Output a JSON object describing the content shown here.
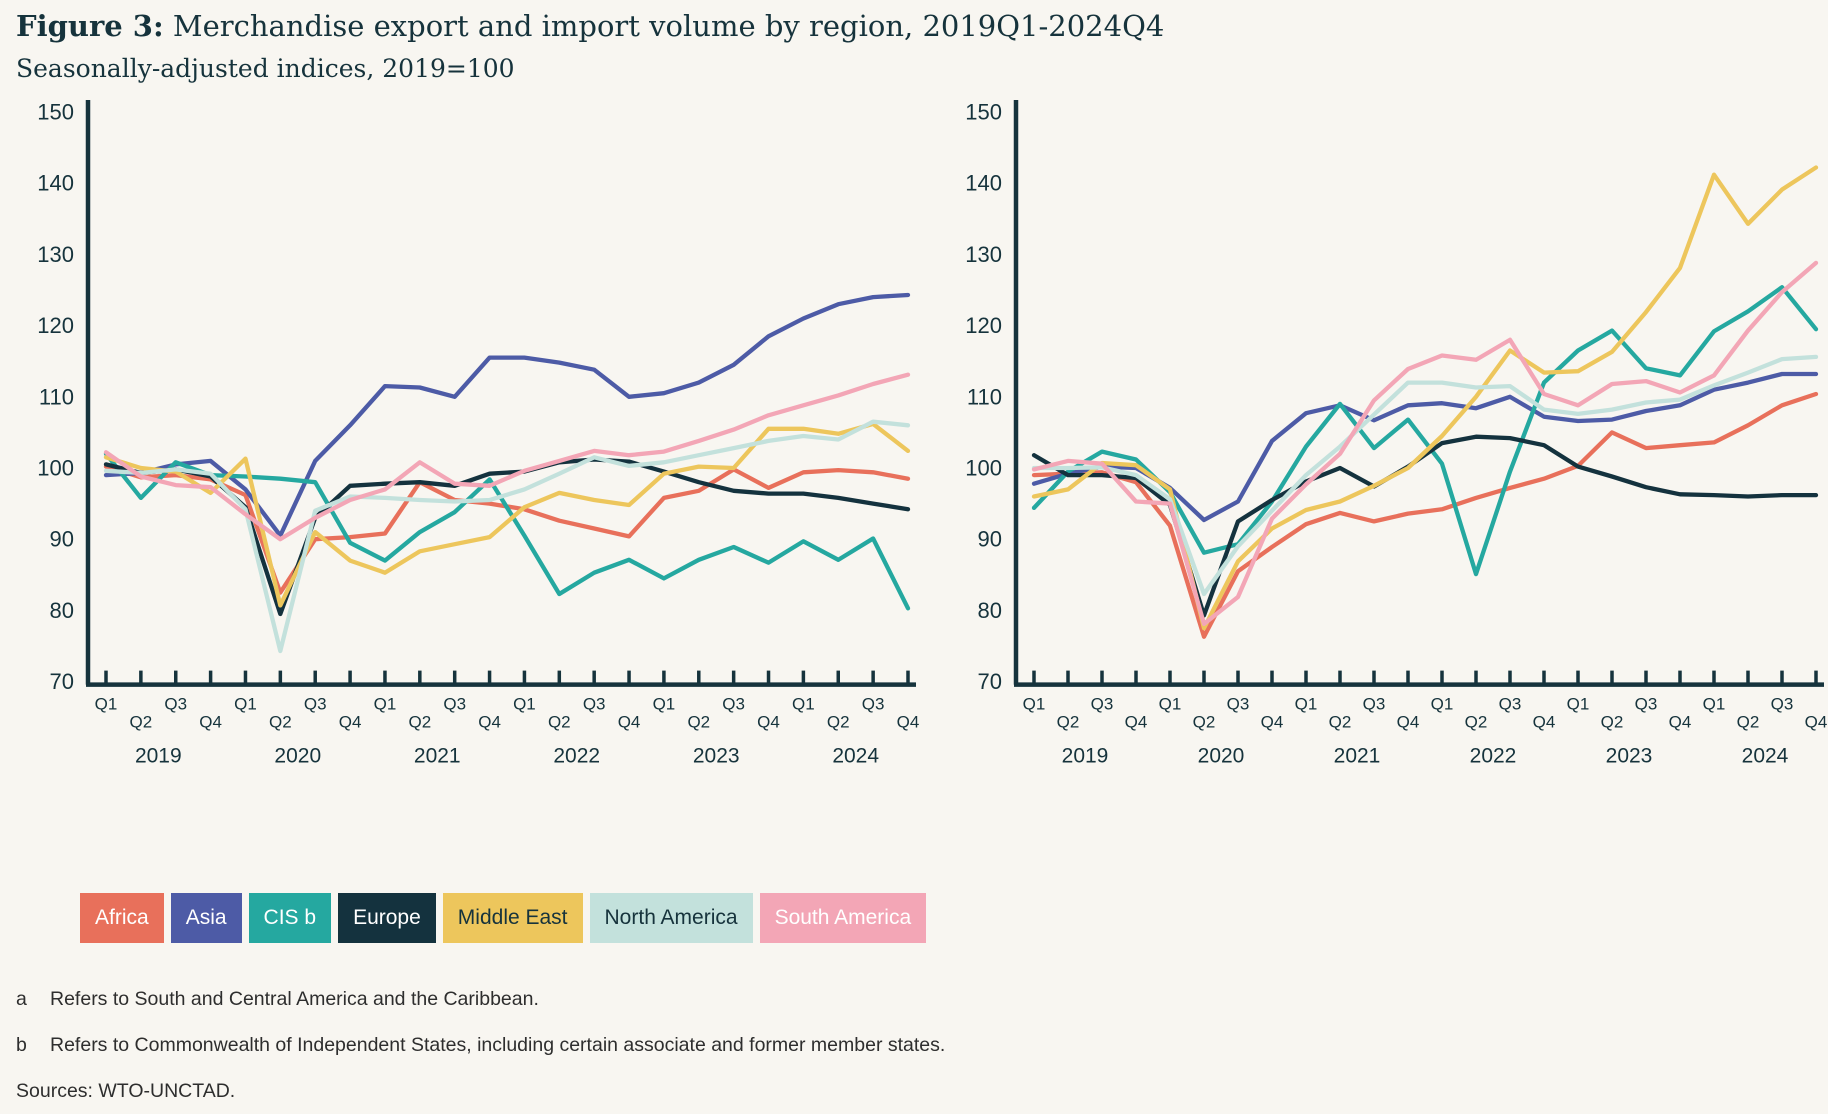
{
  "header": {
    "figure_label": "Figure 3:",
    "title_rest": " Merchandise export and import volume by region, 2019Q1-2024Q4",
    "subtitle": "Seasonally-adjusted indices, 2019=100"
  },
  "colors": {
    "background": "#f8f6f1",
    "axis": "#16333c",
    "footnote_text": "#2e2e2e"
  },
  "legend": [
    {
      "label": "Africa",
      "color": "#e8705b",
      "text_color": "#ffffff"
    },
    {
      "label": "Asia",
      "color": "#4d5ba6",
      "text_color": "#ffffff"
    },
    {
      "label": "CIS b",
      "color": "#25a8a0",
      "text_color": "#ffffff"
    },
    {
      "label": "Europe",
      "color": "#14323e",
      "text_color": "#ffffff"
    },
    {
      "label": "Middle East",
      "color": "#edc65c",
      "text_color": "#16333c"
    },
    {
      "label": "North America",
      "color": "#c3e1dc",
      "text_color": "#16333c"
    },
    {
      "label": "South America",
      "color": "#f3a6b6",
      "text_color": "#ffffff"
    }
  ],
  "footnotes": [
    {
      "marker": "a",
      "text": "Refers to South and Central America and the Caribbean."
    },
    {
      "marker": "b",
      "text": "Refers to Commonwealth of Independent States, including certain associate and former member states."
    }
  ],
  "sources": "Sources: WTO-UNCTAD.",
  "x_axis": {
    "quarters": [
      "Q1",
      "Q2",
      "Q3",
      "Q4",
      "Q1",
      "Q2",
      "Q3",
      "Q4",
      "Q1",
      "Q2",
      "Q3",
      "Q4",
      "Q1",
      "Q2",
      "Q3",
      "Q4",
      "Q1",
      "Q2",
      "Q3",
      "Q4",
      "Q1",
      "Q2",
      "Q3",
      "Q4"
    ],
    "years": [
      "2019",
      "2020",
      "2021",
      "2022",
      "2023",
      "2024"
    ]
  },
  "y_axis": {
    "ticks": [
      150,
      140,
      130,
      120,
      110,
      100,
      90,
      80,
      70
    ]
  },
  "chart_data": [
    {
      "id": "exports",
      "type": "line",
      "title": "",
      "xlabel": "",
      "ylabel": "",
      "ylim": [
        70,
        150
      ],
      "grid": false,
      "legend_position": "bottom",
      "categories": [
        "2019Q1",
        "2019Q2",
        "2019Q3",
        "2019Q4",
        "2020Q1",
        "2020Q2",
        "2020Q3",
        "2020Q4",
        "2021Q1",
        "2021Q2",
        "2021Q3",
        "2021Q4",
        "2022Q1",
        "2022Q2",
        "2022Q3",
        "2022Q4",
        "2023Q1",
        "2023Q2",
        "2023Q3",
        "2023Q4",
        "2024Q1",
        "2024Q2",
        "2024Q3",
        "2024Q4"
      ],
      "series": [
        {
          "name": "Africa",
          "color": "#e8705b",
          "values": [
            100.2,
            98.7,
            99,
            98.4,
            96.2,
            82.5,
            90,
            90.3,
            90.8,
            98,
            95.5,
            95,
            94.2,
            92.6,
            91.5,
            90.4,
            95.8,
            96.8,
            99.8,
            97.2,
            99.4,
            99.7,
            99.4,
            98.5
          ]
        },
        {
          "name": "Asia",
          "color": "#4d5ba6",
          "values": [
            99,
            99.3,
            100.5,
            101,
            97,
            90.5,
            101,
            106,
            111.5,
            111.3,
            110,
            115.5,
            115.5,
            114.8,
            113.8,
            110,
            110.5,
            112,
            114.5,
            118.5,
            121,
            123,
            124,
            124.3
          ]
        },
        {
          "name": "CIS b",
          "color": "#25a8a0",
          "values": [
            102,
            95.8,
            100.8,
            99,
            98.8,
            98.5,
            98,
            89.5,
            87,
            91,
            93.8,
            98.4,
            90.5,
            82.3,
            85.3,
            87.1,
            84.5,
            87.1,
            88.9,
            86.7,
            89.7,
            87.1,
            90.1,
            80.3
          ]
        },
        {
          "name": "Europe",
          "color": "#14323e",
          "values": [
            100.5,
            99.3,
            99.8,
            98.8,
            94.5,
            79.5,
            93,
            97.5,
            97.8,
            98,
            97.5,
            99.2,
            99.5,
            100.8,
            101.2,
            100.9,
            99.5,
            98,
            96.8,
            96.4,
            96.4,
            95.8,
            95,
            94.2
          ]
        },
        {
          "name": "Middle East",
          "color": "#edc65c",
          "values": [
            101.5,
            100,
            99.5,
            96.5,
            101.3,
            80.7,
            91,
            87,
            85.3,
            88.3,
            89.3,
            90.3,
            94.5,
            96.5,
            95.5,
            94.8,
            99.2,
            100.2,
            100,
            105.5,
            105.5,
            104.8,
            106.2,
            102.4
          ]
        },
        {
          "name": "North America",
          "color": "#c3e1dc",
          "values": [
            99.6,
            99.3,
            99.8,
            99.2,
            94.2,
            74.3,
            94,
            96,
            95.8,
            95.5,
            95.3,
            95.5,
            97,
            99.2,
            101.5,
            100.3,
            100.8,
            101.8,
            102.8,
            103.8,
            104.5,
            104,
            106.5,
            106
          ]
        },
        {
          "name": "South America",
          "color": "#f3a6b6",
          "values": [
            102.2,
            98.8,
            97.6,
            97.3,
            93.5,
            90,
            93,
            95.5,
            97,
            100.8,
            97.8,
            97.5,
            99.6,
            101,
            102.4,
            101.8,
            102.3,
            103.8,
            105.4,
            107.4,
            108.8,
            110.2,
            111.8,
            113.1
          ]
        }
      ]
    },
    {
      "id": "imports",
      "type": "line",
      "title": "",
      "xlabel": "",
      "ylabel": "",
      "ylim": [
        70,
        150
      ],
      "grid": false,
      "legend_position": "bottom",
      "categories": [
        "2019Q1",
        "2019Q2",
        "2019Q3",
        "2019Q4",
        "2020Q1",
        "2020Q2",
        "2020Q3",
        "2020Q4",
        "2021Q1",
        "2021Q2",
        "2021Q3",
        "2021Q4",
        "2022Q1",
        "2022Q2",
        "2022Q3",
        "2022Q4",
        "2023Q1",
        "2023Q2",
        "2023Q3",
        "2023Q4",
        "2024Q1",
        "2024Q2",
        "2024Q3",
        "2024Q4"
      ],
      "series": [
        {
          "name": "Africa",
          "color": "#e8705b",
          "values": [
            99,
            99.2,
            99.4,
            98,
            91.9,
            76.3,
            85.5,
            88.9,
            92.1,
            93.7,
            92.5,
            93.6,
            94.2,
            95.8,
            97.2,
            98.5,
            100.3,
            105,
            102.8,
            103.2,
            103.6,
            106,
            108.8,
            110.4
          ]
        },
        {
          "name": "Asia",
          "color": "#4d5ba6",
          "values": [
            97.8,
            99.2,
            100.2,
            100,
            97.2,
            92.7,
            95.3,
            103.8,
            107.7,
            108.8,
            106.7,
            108.8,
            109.1,
            108.4,
            110,
            107.2,
            106.6,
            106.8,
            108,
            108.8,
            111,
            112,
            113.2,
            113.2
          ]
        },
        {
          "name": "CIS b",
          "color": "#25a8a0",
          "values": [
            94.4,
            99.5,
            102.3,
            101.2,
            96.6,
            88.1,
            89.3,
            95.3,
            103,
            109,
            102.8,
            106.8,
            100.6,
            85.1,
            99.5,
            112,
            116.5,
            119.3,
            114,
            113,
            119.2,
            122,
            125.4,
            119.5
          ]
        },
        {
          "name": "Europe",
          "color": "#14323e",
          "values": [
            101.8,
            99,
            99,
            98.6,
            94.8,
            79.3,
            92.5,
            95.5,
            98.1,
            100,
            97.4,
            100.2,
            103.5,
            104.4,
            104.2,
            103.2,
            100.2,
            98.8,
            97.3,
            96.3,
            96.2,
            96,
            96.2,
            96.2
          ]
        },
        {
          "name": "Middle East",
          "color": "#edc65c",
          "values": [
            96,
            97,
            100.7,
            100.4,
            97,
            77.5,
            86.9,
            91.5,
            94.1,
            95.3,
            97.5,
            100,
            104.5,
            110,
            116.5,
            113.4,
            113.6,
            116.3,
            121.9,
            128.1,
            141.2,
            134.3,
            139.1,
            142.2
          ]
        },
        {
          "name": "North America",
          "color": "#c3e1dc",
          "values": [
            100,
            100,
            100.1,
            99,
            95.6,
            82.3,
            89,
            94,
            99,
            103,
            107.5,
            112,
            112,
            111.3,
            111.5,
            108.2,
            107.6,
            108.2,
            109.2,
            109.6,
            111.6,
            113.4,
            115.3,
            115.6
          ]
        },
        {
          "name": "South America",
          "color": "#f3a6b6",
          "values": [
            99.8,
            101,
            100.6,
            95.3,
            95,
            78.1,
            81.9,
            92.9,
            97.7,
            102,
            109.5,
            113.9,
            115.8,
            115.2,
            118,
            110.4,
            108.8,
            111.8,
            112.2,
            110.6,
            113,
            119.3,
            124.7,
            128.8
          ]
        }
      ]
    }
  ]
}
